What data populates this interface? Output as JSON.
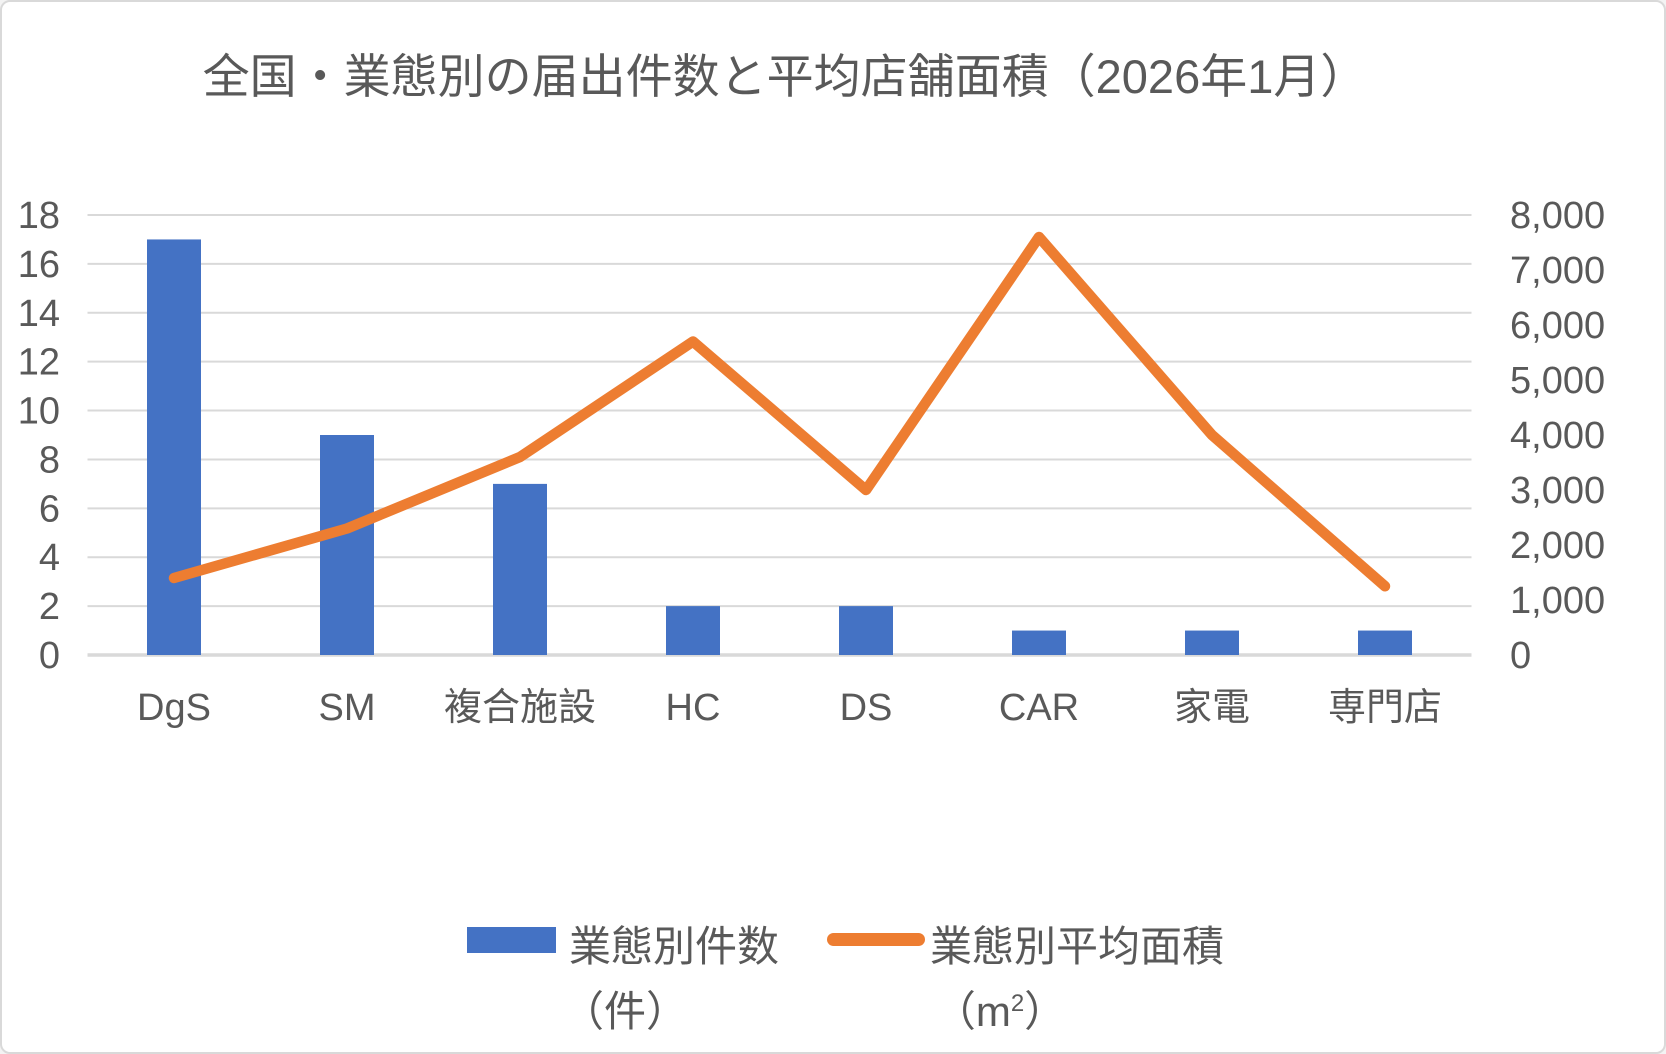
{
  "chart_data": {
    "type": "combo-bar-line",
    "title": "全国・業態別の届出件数と平均店舗面積（2026年1月）",
    "categories": [
      "DgS",
      "SM",
      "複合施設",
      "HC",
      "DS",
      "CAR",
      "家電",
      "専門店"
    ],
    "series": [
      {
        "name": "業態別件数",
        "unit": "（件）",
        "type": "bar",
        "axis": "primary",
        "color": "#4472C4",
        "values": [
          17,
          9,
          7,
          2,
          2,
          1,
          1,
          1
        ]
      },
      {
        "name": "業態別平均面積",
        "unit": "（m²）",
        "type": "line",
        "axis": "secondary",
        "color": "#ED7D31",
        "values": [
          1400,
          2300,
          3600,
          5700,
          3000,
          7600,
          4000,
          1250
        ]
      }
    ],
    "axes": {
      "primary_y": {
        "min": 0,
        "max": 18,
        "step": 2,
        "tick_labels": [
          "0",
          "2",
          "4",
          "6",
          "8",
          "10",
          "12",
          "14",
          "16",
          "18"
        ],
        "side": "left"
      },
      "secondary_y": {
        "min": 0,
        "max": 8000,
        "step": 1000,
        "tick_labels": [
          "0",
          "1,000",
          "2,000",
          "3,000",
          "4,000",
          "5,000",
          "6,000",
          "7,000",
          "8,000"
        ],
        "side": "right"
      }
    },
    "grid": true,
    "legend_position": "bottom"
  },
  "legend": {
    "items": [
      {
        "label": "業態別件数",
        "sublabel": "（件）"
      },
      {
        "label": "業態別平均面積",
        "sublabel_prefix": "（m",
        "sublabel_sup": "2",
        "sublabel_suffix": "）"
      }
    ]
  },
  "colors": {
    "bar": "#4472C4",
    "line": "#ED7D31",
    "grid": "#D9D9D9",
    "text": "#595959",
    "background": "#FFFFFF",
    "frame_border": "#D9D9D9"
  }
}
